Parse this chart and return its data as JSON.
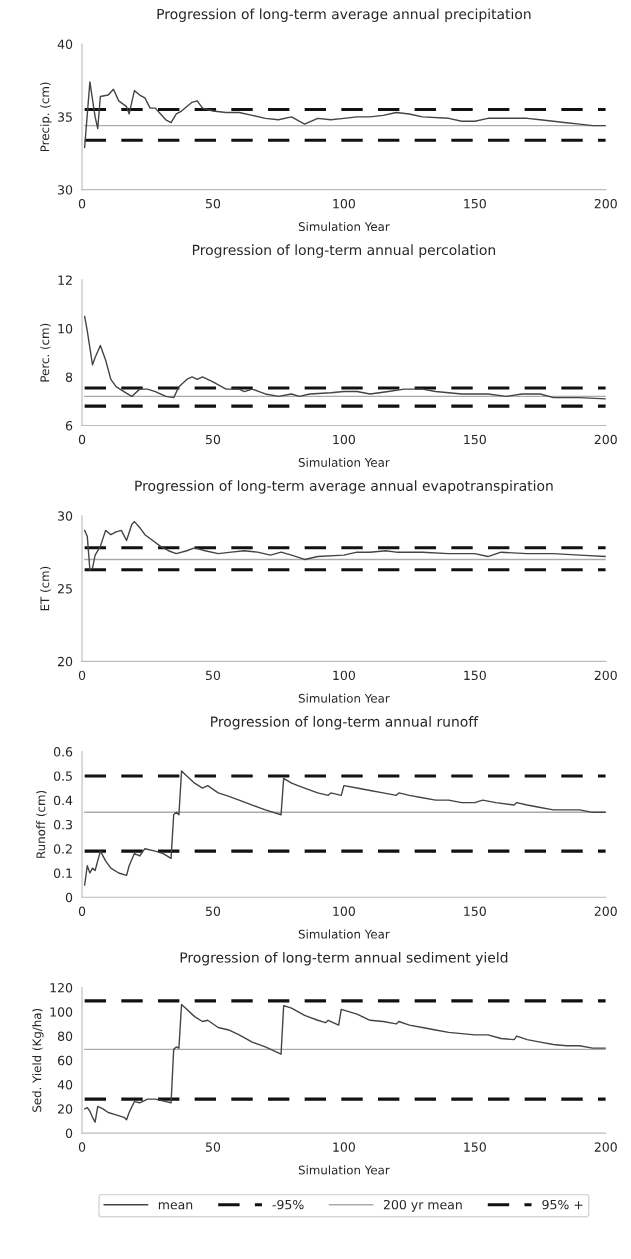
{
  "chart_data": [
    {
      "type": "line",
      "title": "Progression of long-term average annual precipitation",
      "xlabel": "Simulation Year",
      "ylabel": "Precip. (cm)",
      "xlim": [
        0,
        200
      ],
      "ylim": [
        30,
        40
      ],
      "xticks": [
        0,
        50,
        100,
        150,
        200
      ],
      "yticks": [
        30,
        35,
        40
      ],
      "legend": false,
      "series": [
        {
          "color": "#444444",
          "line_style": "solid",
          "x": [
            1,
            3,
            5,
            6,
            7,
            10,
            12,
            14,
            17,
            18,
            20,
            22,
            24,
            26,
            28,
            30,
            32,
            34,
            36,
            38,
            42,
            44,
            46,
            50,
            55,
            60,
            65,
            70,
            75,
            80,
            85,
            90,
            95,
            100,
            105,
            110,
            115,
            120,
            125,
            130,
            140,
            145,
            150,
            155,
            160,
            170,
            175,
            180,
            185,
            190,
            195,
            200
          ],
          "values": [
            32.9,
            37.4,
            35.0,
            34.2,
            36.4,
            36.5,
            36.9,
            36.1,
            35.7,
            35.2,
            36.8,
            36.5,
            36.3,
            35.6,
            35.6,
            35.2,
            34.8,
            34.6,
            35.2,
            35.4,
            36.0,
            36.1,
            35.6,
            35.4,
            35.3,
            35.3,
            35.1,
            34.9,
            34.8,
            35.0,
            34.5,
            34.9,
            34.8,
            34.9,
            35.0,
            35.0,
            35.1,
            35.3,
            35.2,
            35.0,
            34.9,
            34.7,
            34.7,
            34.9,
            34.9,
            34.9,
            34.8,
            34.7,
            34.6,
            34.5,
            34.4,
            34.4
          ]
        },
        {
          "color": "#111111",
          "line_style": "dashed",
          "x": [
            1,
            200
          ],
          "values": [
            33.4,
            33.4
          ]
        },
        {
          "color": "#aaaaaa",
          "line_style": "solid",
          "x": [
            1,
            200
          ],
          "values": [
            34.4,
            34.4
          ]
        },
        {
          "color": "#111111",
          "line_style": "dashed",
          "x": [
            1,
            200
          ],
          "values": [
            35.5,
            35.5
          ]
        }
      ]
    },
    {
      "type": "line",
      "title": "Progression of long-term annual percolation",
      "xlabel": "Simulation Year",
      "ylabel": "Perc. (cm)",
      "xlim": [
        0,
        200
      ],
      "ylim": [
        6,
        12
      ],
      "xticks": [
        0,
        50,
        100,
        150,
        200
      ],
      "yticks": [
        6,
        8,
        10,
        12
      ],
      "legend": false,
      "series": [
        {
          "color": "#444444",
          "line_style": "solid",
          "x": [
            1,
            2,
            4,
            5,
            7,
            9,
            11,
            13,
            16,
            19,
            22,
            25,
            28,
            32,
            35,
            37,
            40,
            42,
            44,
            46,
            50,
            55,
            60,
            62,
            65,
            70,
            75,
            80,
            83,
            87,
            95,
            100,
            105,
            110,
            117,
            123,
            130,
            135,
            145,
            155,
            162,
            168,
            175,
            180,
            190,
            200
          ],
          "values": [
            10.5,
            9.9,
            8.5,
            8.8,
            9.3,
            8.7,
            7.9,
            7.6,
            7.4,
            7.2,
            7.5,
            7.5,
            7.4,
            7.2,
            7.15,
            7.6,
            7.9,
            8.0,
            7.9,
            8.0,
            7.8,
            7.5,
            7.5,
            7.4,
            7.5,
            7.3,
            7.2,
            7.3,
            7.2,
            7.3,
            7.35,
            7.4,
            7.4,
            7.3,
            7.4,
            7.5,
            7.5,
            7.4,
            7.3,
            7.3,
            7.2,
            7.3,
            7.3,
            7.15,
            7.15,
            7.1
          ]
        },
        {
          "color": "#111111",
          "line_style": "dashed",
          "x": [
            1,
            200
          ],
          "values": [
            6.8,
            6.8
          ]
        },
        {
          "color": "#aaaaaa",
          "line_style": "solid",
          "x": [
            1,
            200
          ],
          "values": [
            7.2,
            7.2
          ]
        },
        {
          "color": "#111111",
          "line_style": "dashed",
          "x": [
            1,
            200
          ],
          "values": [
            7.55,
            7.55
          ]
        }
      ]
    },
    {
      "type": "line",
      "title": "Progression of long-term average annual evapotranspiration",
      "xlabel": "Simulation Year",
      "ylabel": "ET (cm)",
      "xlim": [
        0,
        200
      ],
      "ylim": [
        20,
        30
      ],
      "xticks": [
        0,
        50,
        100,
        150,
        200
      ],
      "yticks": [
        20,
        25,
        30
      ],
      "legend": false,
      "series": [
        {
          "color": "#444444",
          "line_style": "solid",
          "x": [
            1,
            2,
            3,
            4,
            5,
            7,
            9,
            11,
            13,
            15,
            17,
            19,
            20,
            22,
            24,
            27,
            30,
            33,
            36,
            40,
            43,
            47,
            52,
            57,
            62,
            67,
            72,
            76,
            80,
            85,
            90,
            100,
            105,
            110,
            116,
            120,
            130,
            140,
            150,
            155,
            160,
            170,
            180,
            190,
            200
          ],
          "values": [
            29.0,
            28.6,
            26.3,
            26.4,
            27.3,
            27.9,
            29.0,
            28.7,
            28.9,
            29.0,
            28.3,
            29.4,
            29.6,
            29.2,
            28.7,
            28.3,
            27.9,
            27.6,
            27.4,
            27.6,
            27.8,
            27.6,
            27.4,
            27.5,
            27.6,
            27.5,
            27.3,
            27.5,
            27.3,
            27.0,
            27.2,
            27.3,
            27.5,
            27.5,
            27.6,
            27.5,
            27.5,
            27.4,
            27.4,
            27.2,
            27.5,
            27.4,
            27.4,
            27.3,
            27.2
          ]
        },
        {
          "color": "#111111",
          "line_style": "dashed",
          "x": [
            1,
            200
          ],
          "values": [
            26.3,
            26.3
          ]
        },
        {
          "color": "#aaaaaa",
          "line_style": "solid",
          "x": [
            1,
            200
          ],
          "values": [
            27.0,
            27.0
          ]
        },
        {
          "color": "#111111",
          "line_style": "dashed",
          "x": [
            1,
            200
          ],
          "values": [
            27.8,
            27.8
          ]
        }
      ]
    },
    {
      "type": "line",
      "title": "Progression of long-term annual runoff",
      "xlabel": "Simulation Year",
      "ylabel": "Runoff (cm)",
      "xlim": [
        0,
        200
      ],
      "ylim": [
        0,
        0.6
      ],
      "xticks": [
        0,
        50,
        100,
        150,
        200
      ],
      "yticks": [
        0,
        0.1,
        0.2,
        0.3,
        0.4,
        0.5,
        0.6
      ],
      "legend": false,
      "series": [
        {
          "color": "#444444",
          "line_style": "solid",
          "x": [
            1,
            2,
            3,
            4,
            5,
            7,
            9,
            11,
            14,
            17,
            18,
            20,
            22,
            24,
            28,
            31,
            34,
            35,
            36,
            37,
            38,
            40,
            43,
            46,
            48,
            52,
            55,
            60,
            65,
            70,
            76,
            77,
            80,
            85,
            90,
            94,
            95,
            99,
            100,
            105,
            110,
            115,
            120,
            121,
            125,
            130,
            135,
            140,
            145,
            150,
            153,
            158,
            165,
            166,
            170,
            175,
            180,
            185,
            190,
            195,
            200
          ],
          "values": [
            0.05,
            0.13,
            0.1,
            0.12,
            0.11,
            0.19,
            0.15,
            0.12,
            0.1,
            0.09,
            0.13,
            0.18,
            0.17,
            0.2,
            0.19,
            0.18,
            0.16,
            0.34,
            0.35,
            0.34,
            0.52,
            0.5,
            0.47,
            0.45,
            0.46,
            0.43,
            0.42,
            0.4,
            0.38,
            0.36,
            0.34,
            0.49,
            0.47,
            0.45,
            0.43,
            0.42,
            0.43,
            0.42,
            0.46,
            0.45,
            0.44,
            0.43,
            0.42,
            0.43,
            0.42,
            0.41,
            0.4,
            0.4,
            0.39,
            0.39,
            0.4,
            0.39,
            0.38,
            0.39,
            0.38,
            0.37,
            0.36,
            0.36,
            0.36,
            0.35,
            0.35
          ]
        },
        {
          "color": "#111111",
          "line_style": "dashed",
          "x": [
            1,
            200
          ],
          "values": [
            0.19,
            0.19
          ]
        },
        {
          "color": "#aaaaaa",
          "line_style": "solid",
          "x": [
            1,
            200
          ],
          "values": [
            0.35,
            0.35
          ]
        },
        {
          "color": "#111111",
          "line_style": "dashed",
          "x": [
            1,
            200
          ],
          "values": [
            0.5,
            0.5
          ]
        }
      ]
    },
    {
      "type": "line",
      "title": "Progression of long-term annual sediment yield",
      "xlabel": "Simulation Year",
      "ylabel": "Sed. Yield (Kg/ha)",
      "xlim": [
        0,
        200
      ],
      "ylim": [
        0,
        120
      ],
      "xticks": [
        0,
        50,
        100,
        150,
        200
      ],
      "yticks": [
        0,
        20,
        40,
        60,
        80,
        100,
        120
      ],
      "legend": "bottom",
      "series": [
        {
          "name": "mean",
          "color": "#444444",
          "line_style": "solid",
          "x": [
            1,
            2,
            3,
            4,
            5,
            6,
            8,
            10,
            13,
            16,
            17,
            18,
            20,
            22,
            25,
            28,
            32,
            34,
            35,
            36,
            37,
            38,
            40,
            43,
            46,
            48,
            52,
            56,
            60,
            65,
            70,
            76,
            77,
            80,
            85,
            90,
            93,
            94,
            98,
            99,
            105,
            110,
            115,
            120,
            121,
            125,
            130,
            135,
            140,
            145,
            150,
            155,
            160,
            165,
            166,
            170,
            175,
            180,
            185,
            190,
            195,
            200
          ],
          "values": [
            20,
            21,
            18,
            13,
            9,
            22,
            20,
            17,
            15,
            13,
            11,
            17,
            26,
            25,
            28,
            28,
            26,
            25,
            69,
            71,
            70,
            106,
            102,
            96,
            92,
            93,
            87,
            85,
            81,
            75,
            71,
            65,
            105,
            103,
            97,
            93,
            91,
            93,
            89,
            102,
            98,
            93,
            92,
            90,
            92,
            89,
            87,
            85,
            83,
            82,
            81,
            81,
            78,
            77,
            80,
            77,
            75,
            73,
            72,
            72,
            70,
            70
          ]
        },
        {
          "name": "-95%",
          "color": "#111111",
          "line_style": "dashed",
          "x": [
            1,
            200
          ],
          "values": [
            28,
            28
          ]
        },
        {
          "name": "200 yr mean",
          "color": "#aaaaaa",
          "line_style": "solid",
          "x": [
            1,
            200
          ],
          "values": [
            69,
            69
          ]
        },
        {
          "name": "95% +",
          "color": "#111111",
          "line_style": "dashed",
          "x": [
            1,
            200
          ],
          "values": [
            109,
            109
          ]
        }
      ]
    }
  ]
}
